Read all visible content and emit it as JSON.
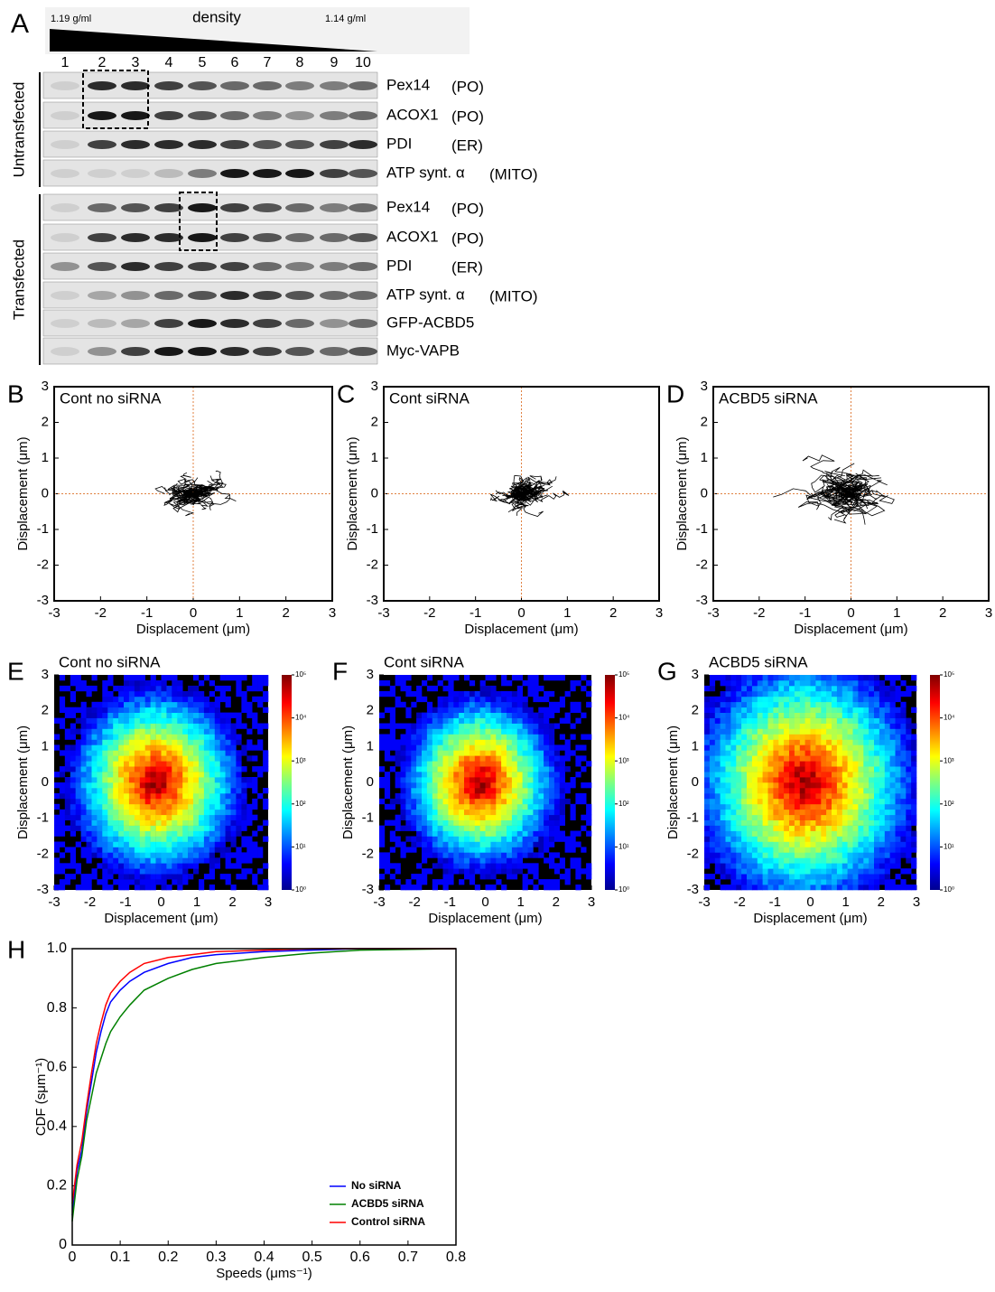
{
  "panel_a": {
    "letter": "A",
    "density_label": "density",
    "high_label": "1.19 g/ml",
    "low_label": "1.14 g/ml",
    "fractions": [
      "1",
      "2",
      "3",
      "4",
      "5",
      "6",
      "7",
      "8",
      "9",
      "10"
    ],
    "groups": [
      {
        "label": "Untransfected",
        "rows": [
          {
            "protein": "Pex14",
            "compartment": "(PO)"
          },
          {
            "protein": "ACOX1",
            "compartment": "(PO)"
          },
          {
            "protein": "PDI",
            "compartment": "(ER)"
          },
          {
            "protein": "ATP synt. α",
            "compartment": "(MITO)"
          }
        ]
      },
      {
        "label": "Transfected",
        "rows": [
          {
            "protein": "Pex14",
            "compartment": "(PO)"
          },
          {
            "protein": "ACOX1",
            "compartment": "(PO)"
          },
          {
            "protein": "PDI",
            "compartment": "(ER)"
          },
          {
            "protein": "ATP synt. α",
            "compartment": "(MITO)"
          },
          {
            "protein": "GFP-ACBD5"
          },
          {
            "protein": "Myc-VAPB"
          }
        ]
      }
    ]
  },
  "chart_data": [
    {
      "type": "trajectory",
      "letter": "B",
      "title": "Cont no siRNA",
      "xlabel": "Displacement (μm)",
      "ylabel": "Displacement (μm)",
      "xlim": [
        -3,
        3
      ],
      "ylim": [
        -3,
        3
      ],
      "xticks": [
        -3,
        -2,
        -1,
        0,
        1,
        2,
        3
      ],
      "yticks": [
        -3,
        -2,
        -1,
        0,
        1,
        2,
        3
      ]
    },
    {
      "type": "trajectory",
      "letter": "C",
      "title": "Cont siRNA",
      "xlabel": "Displacement (μm)",
      "ylabel": "Displacement (μm)",
      "xlim": [
        -3,
        3
      ],
      "ylim": [
        -3,
        3
      ],
      "xticks": [
        -3,
        -2,
        -1,
        0,
        1,
        2,
        3
      ],
      "yticks": [
        -3,
        -2,
        -1,
        0,
        1,
        2,
        3
      ]
    },
    {
      "type": "trajectory",
      "letter": "D",
      "title": "ACBD5 siRNA",
      "xlabel": "Displacement (μm)",
      "ylabel": "Displacement (μm)",
      "xlim": [
        -3,
        3
      ],
      "ylim": [
        -3,
        3
      ],
      "xticks": [
        -3,
        -2,
        -1,
        0,
        1,
        2,
        3
      ],
      "yticks": [
        -3,
        -2,
        -1,
        0,
        1,
        2,
        3
      ]
    },
    {
      "type": "heatmap",
      "letter": "E",
      "title": "Cont no siRNA",
      "xlabel": "Displacement (μm)",
      "ylabel": "Displacement (μm)",
      "xlim": [
        -3,
        3
      ],
      "ylim": [
        -3,
        3
      ],
      "xticks": [
        -3,
        -2,
        -1,
        0,
        1,
        2,
        3
      ],
      "yticks": [
        -3,
        -2,
        -1,
        0,
        1,
        2,
        3
      ],
      "clim": [
        1,
        100000
      ],
      "color_log": true,
      "cticks": [
        {
          "value": 1,
          "label": "10⁰"
        },
        {
          "value": 10,
          "label": "10¹"
        },
        {
          "value": 100,
          "label": "10²"
        },
        {
          "value": 1000,
          "label": "10³"
        },
        {
          "value": 10000,
          "label": "10⁴"
        },
        {
          "value": 100000,
          "label": "10⁵"
        }
      ]
    },
    {
      "type": "heatmap",
      "letter": "F",
      "title": "Cont siRNA",
      "xlabel": "Displacement (μm)",
      "ylabel": "Displacement (μm)",
      "xlim": [
        -3,
        3
      ],
      "ylim": [
        -3,
        3
      ],
      "xticks": [
        -3,
        -2,
        -1,
        0,
        1,
        2,
        3
      ],
      "yticks": [
        -3,
        -2,
        -1,
        0,
        1,
        2,
        3
      ],
      "clim": [
        1,
        100000
      ],
      "color_log": true,
      "cticks": [
        {
          "value": 1,
          "label": "10⁰"
        },
        {
          "value": 10,
          "label": "10¹"
        },
        {
          "value": 100,
          "label": "10²"
        },
        {
          "value": 1000,
          "label": "10³"
        },
        {
          "value": 10000,
          "label": "10⁴"
        },
        {
          "value": 100000,
          "label": "10⁵"
        }
      ]
    },
    {
      "type": "heatmap",
      "letter": "G",
      "title": "ACBD5 siRNA",
      "xlabel": "Displacement (μm)",
      "ylabel": "Displacement (μm)",
      "xlim": [
        -3,
        3
      ],
      "ylim": [
        -3,
        3
      ],
      "xticks": [
        -3,
        -2,
        -1,
        0,
        1,
        2,
        3
      ],
      "yticks": [
        -3,
        -2,
        -1,
        0,
        1,
        2,
        3
      ],
      "clim": [
        1,
        100000
      ],
      "color_log": true,
      "cticks": [
        {
          "value": 1,
          "label": "10⁰"
        },
        {
          "value": 10,
          "label": "10¹"
        },
        {
          "value": 100,
          "label": "10²"
        },
        {
          "value": 1000,
          "label": "10³"
        },
        {
          "value": 10000,
          "label": "10⁴"
        },
        {
          "value": 100000,
          "label": "10⁵"
        }
      ]
    },
    {
      "type": "line",
      "letter": "H",
      "xlabel": "Speeds (μms⁻¹)",
      "ylabel": "CDF (sμm⁻¹)",
      "xlim": [
        0,
        0.8
      ],
      "ylim": [
        0,
        1
      ],
      "xticks": [
        0,
        0.1,
        0.2,
        0.3,
        0.4,
        0.5,
        0.6,
        0.7,
        0.8
      ],
      "yticks": [
        0,
        0.2,
        0.4,
        0.6,
        0.8,
        {
          "value": 1,
          "label": "1.0"
        }
      ],
      "legend": "lower right",
      "x": [
        0,
        0.01,
        0.02,
        0.03,
        0.04,
        0.05,
        0.06,
        0.07,
        0.08,
        0.1,
        0.12,
        0.15,
        0.2,
        0.25,
        0.3,
        0.4,
        0.5,
        0.6,
        0.8
      ],
      "series": [
        {
          "name": "No siRNA",
          "color": "#0000ff",
          "values": [
            0.1,
            0.25,
            0.32,
            0.45,
            0.55,
            0.65,
            0.72,
            0.78,
            0.82,
            0.86,
            0.89,
            0.92,
            0.95,
            0.97,
            0.98,
            0.99,
            0.995,
            1.0,
            1.0
          ]
        },
        {
          "name": "ACBD5 siRNA",
          "color": "#008000",
          "values": [
            0.08,
            0.22,
            0.3,
            0.42,
            0.5,
            0.58,
            0.63,
            0.68,
            0.72,
            0.77,
            0.81,
            0.86,
            0.9,
            0.93,
            0.95,
            0.97,
            0.985,
            0.995,
            1.0
          ]
        },
        {
          "name": "Control siRNA",
          "color": "#ff0000",
          "values": [
            0.14,
            0.27,
            0.35,
            0.47,
            0.58,
            0.68,
            0.75,
            0.81,
            0.85,
            0.89,
            0.92,
            0.95,
            0.97,
            0.98,
            0.99,
            0.995,
            1.0,
            1.0,
            1.0
          ]
        }
      ]
    }
  ]
}
